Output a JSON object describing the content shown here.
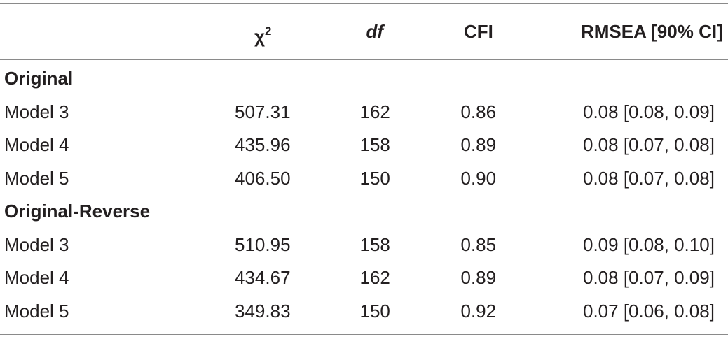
{
  "table": {
    "header": [
      {
        "text": "χ",
        "sup": "2"
      },
      {
        "text": "df"
      },
      {
        "text": "CFI"
      },
      {
        "text": "RMSEA [90% CI]"
      }
    ],
    "groups": [
      {
        "title": "Original",
        "rows": [
          [
            "Model 3",
            "507.31",
            "162",
            "0.86",
            "0.08 [0.08, 0.09]"
          ],
          [
            "Model 4",
            "435.96",
            "158",
            "0.89",
            "0.08 [0.07, 0.08]"
          ],
          [
            "Model 5",
            "406.50",
            "150",
            "0.90",
            "0.08 [0.07, 0.08]"
          ]
        ]
      },
      {
        "title": "Original-Reverse",
        "rows": [
          [
            "Model 3",
            "510.95",
            "158",
            "0.85",
            "0.09 [0.08, 0.10]"
          ],
          [
            "Model 4",
            "434.67",
            "162",
            "0.89",
            "0.08 [0.07, 0.09]"
          ],
          [
            "Model 5",
            "349.83",
            "150",
            "0.92",
            "0.07 [0.06, 0.08]"
          ]
        ]
      }
    ]
  }
}
